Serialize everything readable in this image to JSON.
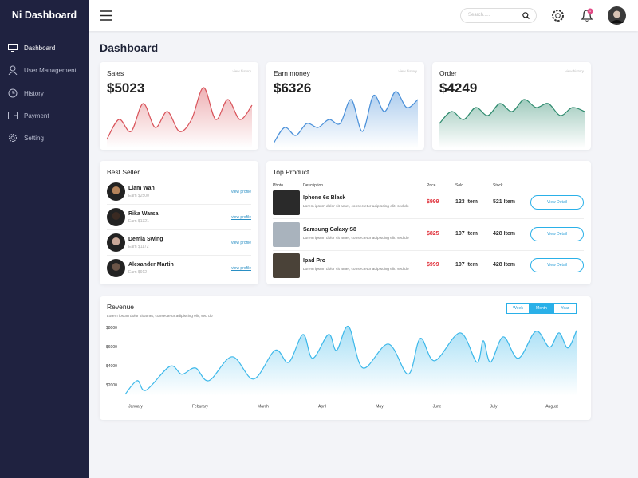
{
  "sidebar": {
    "brand": "Ni Dashboard",
    "menu": [
      "Dashboard",
      "User Management",
      "History",
      "Payment",
      "Setting"
    ]
  },
  "header": {
    "search_placeholder": "Search.....",
    "notification_count": "1"
  },
  "page_title": "Dashboard",
  "stats": [
    {
      "title": "Sales",
      "link": "view history",
      "value": "$5023",
      "color": "#d9535a",
      "trend": [
        10,
        35,
        20,
        55,
        25,
        45,
        20,
        35,
        75,
        35,
        60,
        35,
        53
      ]
    },
    {
      "title": "Earn money",
      "link": "view history",
      "value": "$6326",
      "color": "#4a90d9",
      "trend": [
        5,
        25,
        15,
        30,
        25,
        35,
        30,
        60,
        20,
        65,
        45,
        70,
        50,
        60
      ]
    },
    {
      "title": "Order",
      "link": "view history",
      "value": "$4249",
      "color": "#2e8b6e",
      "trend": [
        30,
        45,
        35,
        50,
        40,
        55,
        45,
        60,
        50,
        55,
        40,
        50,
        45
      ]
    }
  ],
  "best_seller": {
    "title": "Best Seller",
    "link": "view profile",
    "people": [
      {
        "name": "Liam Wan",
        "earn": "Earn $2500"
      },
      {
        "name": "Rika Warsa",
        "earn": "Earn $1321"
      },
      {
        "name": "Demia Swing",
        "earn": "Earn $1172"
      },
      {
        "name": "Alexander Martin",
        "earn": "Earn $912"
      }
    ]
  },
  "top_product": {
    "title": "Top Product",
    "columns": [
      "Photo",
      "Description",
      "Price",
      "Sold",
      "Stock"
    ],
    "button": "View Detail",
    "rows": [
      {
        "name": "Iphone 6s Black",
        "description": "Lorem ipsum dolor sit amet, consectetur adipiscing elit, sed do",
        "price": "$999",
        "sold": "123 Item",
        "stock": "521 Item"
      },
      {
        "name": "Samsung Galaxy S8",
        "description": "Lorem ipsum dolor sit amet, consectetur adipiscing elit, sed do",
        "price": "$825",
        "sold": "107 Item",
        "stock": "428 Item"
      },
      {
        "name": "Ipad Pro",
        "description": "Lorem ipsum dolor sit amet, consectetur adipiscing elit, sed do",
        "price": "$999",
        "sold": "107 Item",
        "stock": "428 Item"
      }
    ]
  },
  "revenue": {
    "title": "Revenue",
    "subtitle": "Lorem ipsum dolor sit amet, consectetur adipiscing elit, sed do",
    "tabs": [
      "Week",
      "Month",
      "Year"
    ],
    "active_tab": "Month",
    "chart_data": {
      "type": "line",
      "color": "#3cb8ea",
      "x": [
        0.2,
        1.7,
        2.8,
        5.8,
        7.3,
        9,
        10.7,
        13.6,
        16.3,
        19,
        20.7,
        22.5,
        23.7,
        25.7,
        26.7,
        28.2,
        30,
        33.2,
        35.7,
        37.2,
        39,
        42.2,
        44.3,
        45.1,
        46,
        47.6,
        49.5,
        51.7,
        53.4,
        54.6,
        55.7,
        56.8
      ],
      "values": [
        1083,
        2500,
        1500,
        4000,
        3170,
        3830,
        2500,
        5000,
        2670,
        5670,
        4420,
        7330,
        4830,
        7330,
        5670,
        8170,
        3830,
        6330,
        3170,
        6920,
        4580,
        7500,
        4420,
        6670,
        4420,
        7080,
        4830,
        7670,
        6000,
        7500,
        5920,
        7750
      ],
      "xlim": [
        0,
        57
      ],
      "xticks": [
        {
          "value": 1.5,
          "label": "January"
        },
        {
          "value": 9.6,
          "label": "Feburary"
        },
        {
          "value": 17.5,
          "label": "March"
        },
        {
          "value": 24.9,
          "label": "April"
        },
        {
          "value": 32.1,
          "label": "May"
        },
        {
          "value": 39.3,
          "label": "June"
        },
        {
          "value": 46.4,
          "label": "July"
        },
        {
          "value": 53.7,
          "label": "August"
        }
      ],
      "ylim": [
        900,
        8600
      ],
      "yticks": [
        {
          "value": 2000,
          "label": "$2000"
        },
        {
          "value": 4000,
          "label": "$4000"
        },
        {
          "value": 6000,
          "label": "$6000"
        },
        {
          "value": 8000,
          "label": "$8000"
        }
      ]
    }
  }
}
